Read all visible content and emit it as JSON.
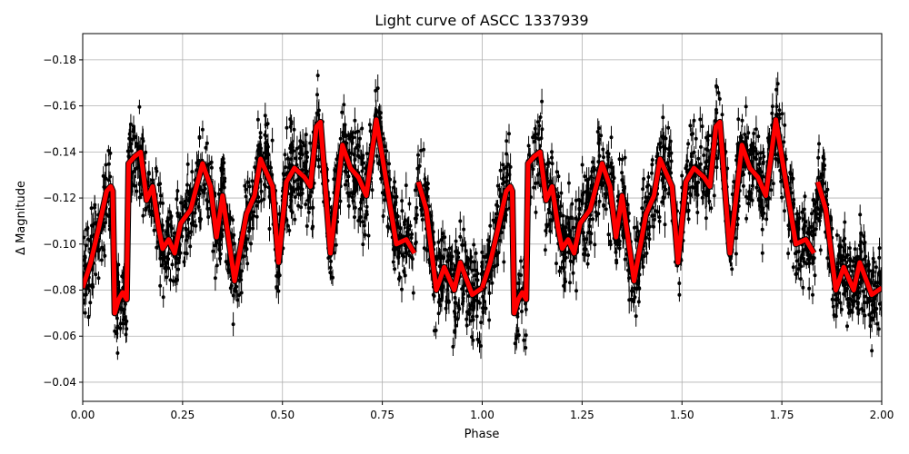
{
  "chart_data": {
    "type": "scatter",
    "title": "Light curve of ASCC 1337939",
    "xlabel": "Phase",
    "ylabel": "Δ Magnitude",
    "xlim": [
      0.0,
      2.0
    ],
    "ylim": [
      -0.1914,
      -0.0317
    ],
    "y_inverted": true,
    "grid": true,
    "xticks": [
      0.0,
      0.25,
      0.5,
      0.75,
      1.0,
      1.25,
      1.5,
      1.75,
      2.0
    ],
    "xtick_labels": [
      "0.00",
      "0.25",
      "0.50",
      "0.75",
      "1.00",
      "1.25",
      "1.50",
      "1.75",
      "2.00"
    ],
    "yticks": [
      -0.18,
      -0.16,
      -0.14,
      -0.12,
      -0.1,
      -0.08,
      -0.06,
      -0.04
    ],
    "ytick_labels": [
      "−0.18",
      "−0.16",
      "−0.14",
      "−0.12",
      "−0.10",
      "−0.08",
      "−0.06",
      "−0.04"
    ],
    "colors": {
      "points": "#000000",
      "model": "#ff0000",
      "grid": "#b0b0b0"
    },
    "series": [
      {
        "name": "observations",
        "kind": "errorbar-scatter",
        "note": "dense phase-folded photometry with error bars scattered around the model, approx spread ±0.03 mag",
        "spread": 0.03
      },
      {
        "name": "model",
        "kind": "line",
        "period_repeat": 1.0,
        "segments": [
          [
            [
              0.0,
              -0.081
            ],
            [
              0.02,
              -0.092
            ],
            [
              0.04,
              -0.107
            ],
            [
              0.06,
              -0.123
            ],
            [
              0.07,
              -0.125
            ],
            [
              0.075,
              -0.123
            ],
            [
              0.08,
              -0.07
            ],
            [
              0.09,
              -0.076
            ],
            [
              0.1,
              -0.079
            ],
            [
              0.11,
              -0.076
            ],
            [
              0.115,
              -0.135
            ],
            [
              0.13,
              -0.138
            ],
            [
              0.145,
              -0.14
            ],
            [
              0.16,
              -0.119
            ],
            [
              0.175,
              -0.125
            ],
            [
              0.19,
              -0.107
            ],
            [
              0.2,
              -0.098
            ],
            [
              0.215,
              -0.102
            ],
            [
              0.23,
              -0.096
            ],
            [
              0.245,
              -0.109
            ],
            [
              0.27,
              -0.115
            ],
            [
              0.3,
              -0.135
            ],
            [
              0.32,
              -0.125
            ],
            [
              0.335,
              -0.103
            ],
            [
              0.35,
              -0.121
            ],
            [
              0.38,
              -0.084
            ],
            [
              0.41,
              -0.113
            ],
            [
              0.43,
              -0.121
            ],
            [
              0.445,
              -0.137
            ],
            [
              0.46,
              -0.131
            ],
            [
              0.475,
              -0.125
            ],
            [
              0.49,
              -0.092
            ],
            [
              0.51,
              -0.127
            ],
            [
              0.53,
              -0.133
            ],
            [
              0.555,
              -0.129
            ],
            [
              0.57,
              -0.125
            ],
            [
              0.585,
              -0.151
            ],
            [
              0.595,
              -0.153
            ],
            [
              0.62,
              -0.096
            ],
            [
              0.65,
              -0.143
            ],
            [
              0.67,
              -0.133
            ],
            [
              0.69,
              -0.129
            ],
            [
              0.71,
              -0.121
            ],
            [
              0.735,
              -0.154
            ],
            [
              0.76,
              -0.127
            ],
            [
              0.785,
              -0.1
            ],
            [
              0.81,
              -0.102
            ],
            [
              0.83,
              -0.096
            ]
          ],
          [
            [
              0.84,
              -0.127
            ],
            [
              0.86,
              -0.115
            ],
            [
              0.885,
              -0.08
            ],
            [
              0.905,
              -0.09
            ],
            [
              0.93,
              -0.08
            ],
            [
              0.945,
              -0.092
            ],
            [
              0.975,
              -0.078
            ],
            [
              1.0,
              -0.081
            ]
          ]
        ]
      }
    ]
  }
}
